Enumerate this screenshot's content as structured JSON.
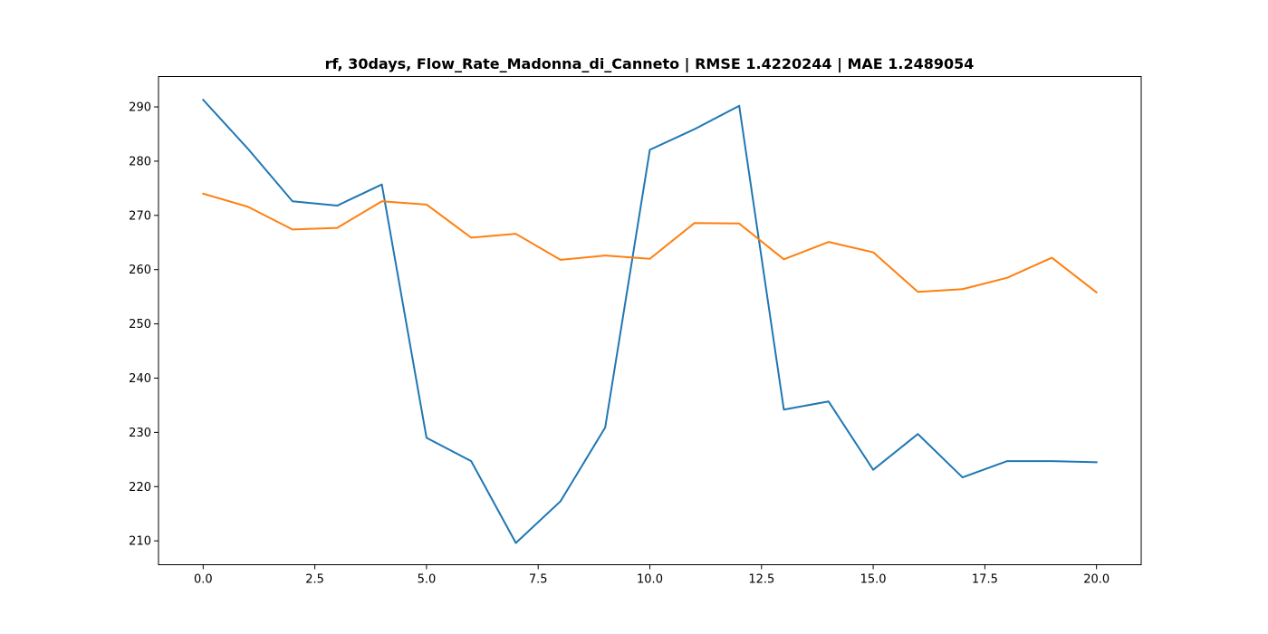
{
  "chart_data": {
    "type": "line",
    "title": "rf, 30days, Flow_Rate_Madonna_di_Canneto | RMSE 1.4220244 | MAE 1.2489054",
    "xlabel": "",
    "ylabel": "",
    "xlim": [
      -1.0,
      21.0
    ],
    "ylim": [
      205.6,
      295.6
    ],
    "grid": false,
    "x": [
      0,
      1,
      2,
      3,
      4,
      5,
      6,
      7,
      8,
      9,
      10,
      11,
      12,
      13,
      14,
      15,
      16,
      17,
      18,
      19,
      20
    ],
    "x_ticks": [
      {
        "value": 0.0,
        "label": "0.0"
      },
      {
        "value": 2.5,
        "label": "2.5"
      },
      {
        "value": 5.0,
        "label": "5.0"
      },
      {
        "value": 7.5,
        "label": "7.5"
      },
      {
        "value": 10.0,
        "label": "10.0"
      },
      {
        "value": 12.5,
        "label": "12.5"
      },
      {
        "value": 15.0,
        "label": "15.0"
      },
      {
        "value": 17.5,
        "label": "17.5"
      },
      {
        "value": 20.0,
        "label": "20.0"
      }
    ],
    "y_ticks": [
      {
        "value": 210,
        "label": "210"
      },
      {
        "value": 220,
        "label": "220"
      },
      {
        "value": 230,
        "label": "230"
      },
      {
        "value": 240,
        "label": "240"
      },
      {
        "value": 250,
        "label": "250"
      },
      {
        "value": 260,
        "label": "260"
      },
      {
        "value": 270,
        "label": "270"
      },
      {
        "value": 280,
        "label": "280"
      },
      {
        "value": 290,
        "label": "290"
      }
    ],
    "series": [
      {
        "color": "#1f77b4",
        "values": [
          291.3,
          282.3,
          272.6,
          271.8,
          275.7,
          229.0,
          224.7,
          209.6,
          217.3,
          230.9,
          282.1,
          285.9,
          290.2,
          234.2,
          235.7,
          223.1,
          229.7,
          221.7,
          224.7,
          224.7,
          224.5
        ]
      },
      {
        "color": "#ff7f0e",
        "values": [
          274.0,
          271.6,
          267.4,
          267.7,
          272.6,
          272.0,
          265.9,
          266.6,
          261.8,
          262.6,
          262.0,
          268.6,
          268.5,
          261.9,
          265.1,
          263.2,
          255.9,
          256.4,
          258.5,
          262.2,
          255.8
        ]
      }
    ]
  }
}
